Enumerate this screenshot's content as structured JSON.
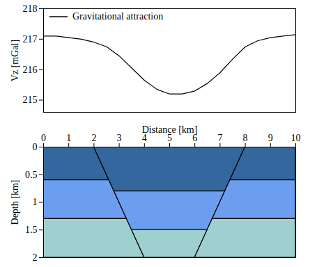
{
  "chart_data": [
    {
      "type": "line",
      "y_label": "Vz [mGal]",
      "x": [
        0,
        0.5,
        1,
        1.5,
        2,
        2.5,
        3,
        3.5,
        4,
        4.5,
        5,
        5.5,
        6,
        6.5,
        7,
        7.5,
        8,
        8.5,
        9,
        9.5,
        10
      ],
      "series": [
        {
          "name": "Gravitational attraction",
          "color": "#000000",
          "values": [
            217.1,
            217.1,
            217.05,
            217.0,
            216.9,
            216.75,
            216.45,
            216.05,
            215.65,
            215.35,
            215.2,
            215.2,
            215.3,
            215.55,
            215.9,
            216.35,
            216.75,
            216.95,
            217.05,
            217.1,
            217.15
          ]
        }
      ],
      "xlim": [
        0,
        10
      ],
      "ylim": [
        214.6,
        218
      ],
      "yticks": [
        215,
        216,
        217,
        218
      ],
      "tick_labels": "y",
      "legend": "top-left"
    },
    {
      "type": "polygon",
      "x_label": "Distance [km]",
      "y_label": "Depth [km]",
      "xlim": [
        0,
        10
      ],
      "ylim": [
        2,
        0
      ],
      "xticks": [
        0,
        1,
        2,
        3,
        4,
        5,
        6,
        7,
        8,
        9,
        10
      ],
      "yticks": [
        0,
        0.5,
        1,
        1.5,
        2
      ],
      "layers": [
        {
          "color": "#33679d",
          "depth": [
            0,
            0.6
          ],
          "left": [
            0,
            0
          ],
          "right": [
            2,
            2.6
          ]
        },
        {
          "color": "#6c9ef0",
          "depth": [
            0.6,
            1.3
          ],
          "left": [
            0,
            0
          ],
          "right": [
            2.6,
            3.3
          ]
        },
        {
          "color": "#9ed0cf",
          "depth": [
            1.3,
            2
          ],
          "left": [
            0,
            0
          ],
          "right": [
            3.3,
            4
          ]
        },
        {
          "color": "#33679d",
          "depth": [
            0,
            0.8
          ],
          "left": [
            2,
            2.8
          ],
          "right": [
            8,
            7.2
          ]
        },
        {
          "color": "#6c9ef0",
          "depth": [
            0.8,
            1.5
          ],
          "left": [
            2.8,
            3.5
          ],
          "right": [
            7.2,
            6.5
          ]
        },
        {
          "color": "#9ed0cf",
          "depth": [
            1.5,
            2
          ],
          "left": [
            3.5,
            4
          ],
          "right": [
            6.5,
            6
          ]
        },
        {
          "color": "#33679d",
          "depth": [
            0,
            0.6
          ],
          "left": [
            8,
            7.4
          ],
          "right": [
            10,
            10
          ]
        },
        {
          "color": "#6c9ef0",
          "depth": [
            0.6,
            1.3
          ],
          "left": [
            7.4,
            6.7
          ],
          "right": [
            10,
            10
          ]
        },
        {
          "color": "#9ed0cf",
          "depth": [
            1.3,
            2
          ],
          "left": [
            6.7,
            6
          ],
          "right": [
            10,
            10
          ]
        }
      ]
    }
  ]
}
